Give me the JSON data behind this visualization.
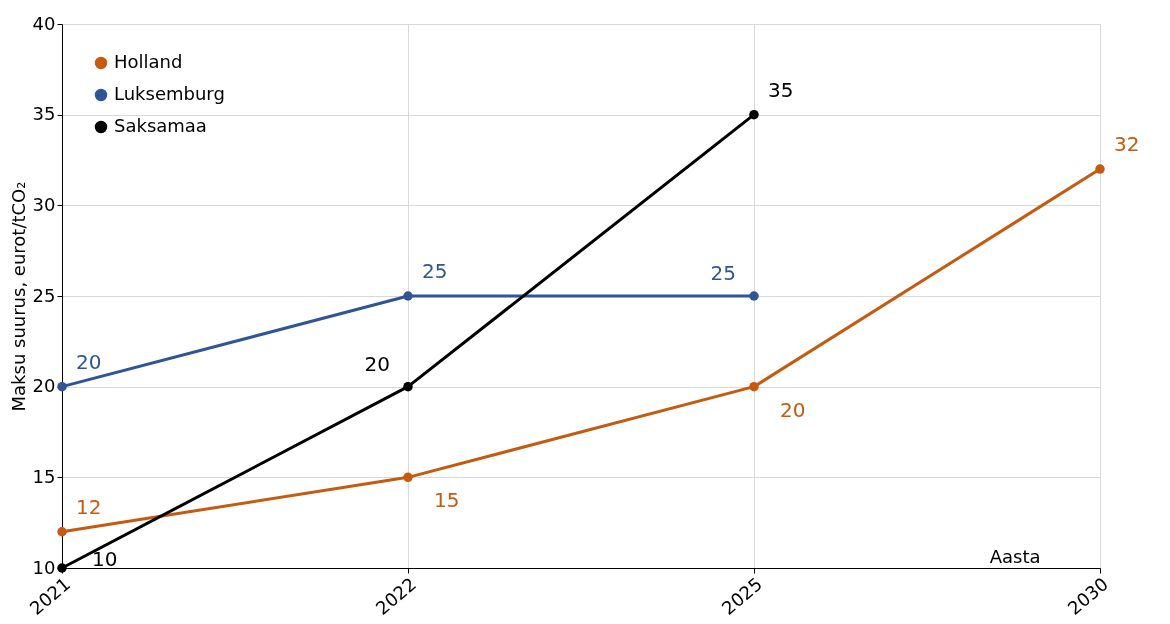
{
  "chart_data": {
    "type": "line",
    "xlabel": "Aasta",
    "ylabel": "Maksu suurus, eurot/tCO₂",
    "categories": [
      "2021",
      "2022",
      "2025",
      "2030"
    ],
    "series": [
      {
        "name": "Holland",
        "color": "#c55a11",
        "values": [
          12,
          15,
          20,
          32
        ]
      },
      {
        "name": "Luksemburg",
        "color": "#2f5597",
        "values": [
          20,
          25,
          25,
          null
        ]
      },
      {
        "name": "Saksamaa",
        "color": "#000000",
        "values": [
          10,
          20,
          35,
          null
        ]
      }
    ],
    "ylim": [
      10,
      40
    ],
    "yticks": [
      10,
      15,
      20,
      25,
      30,
      35,
      40
    ],
    "grid": true,
    "legend": "top left",
    "marker": "circle",
    "line_style": "solid",
    "data_labels": true
  }
}
